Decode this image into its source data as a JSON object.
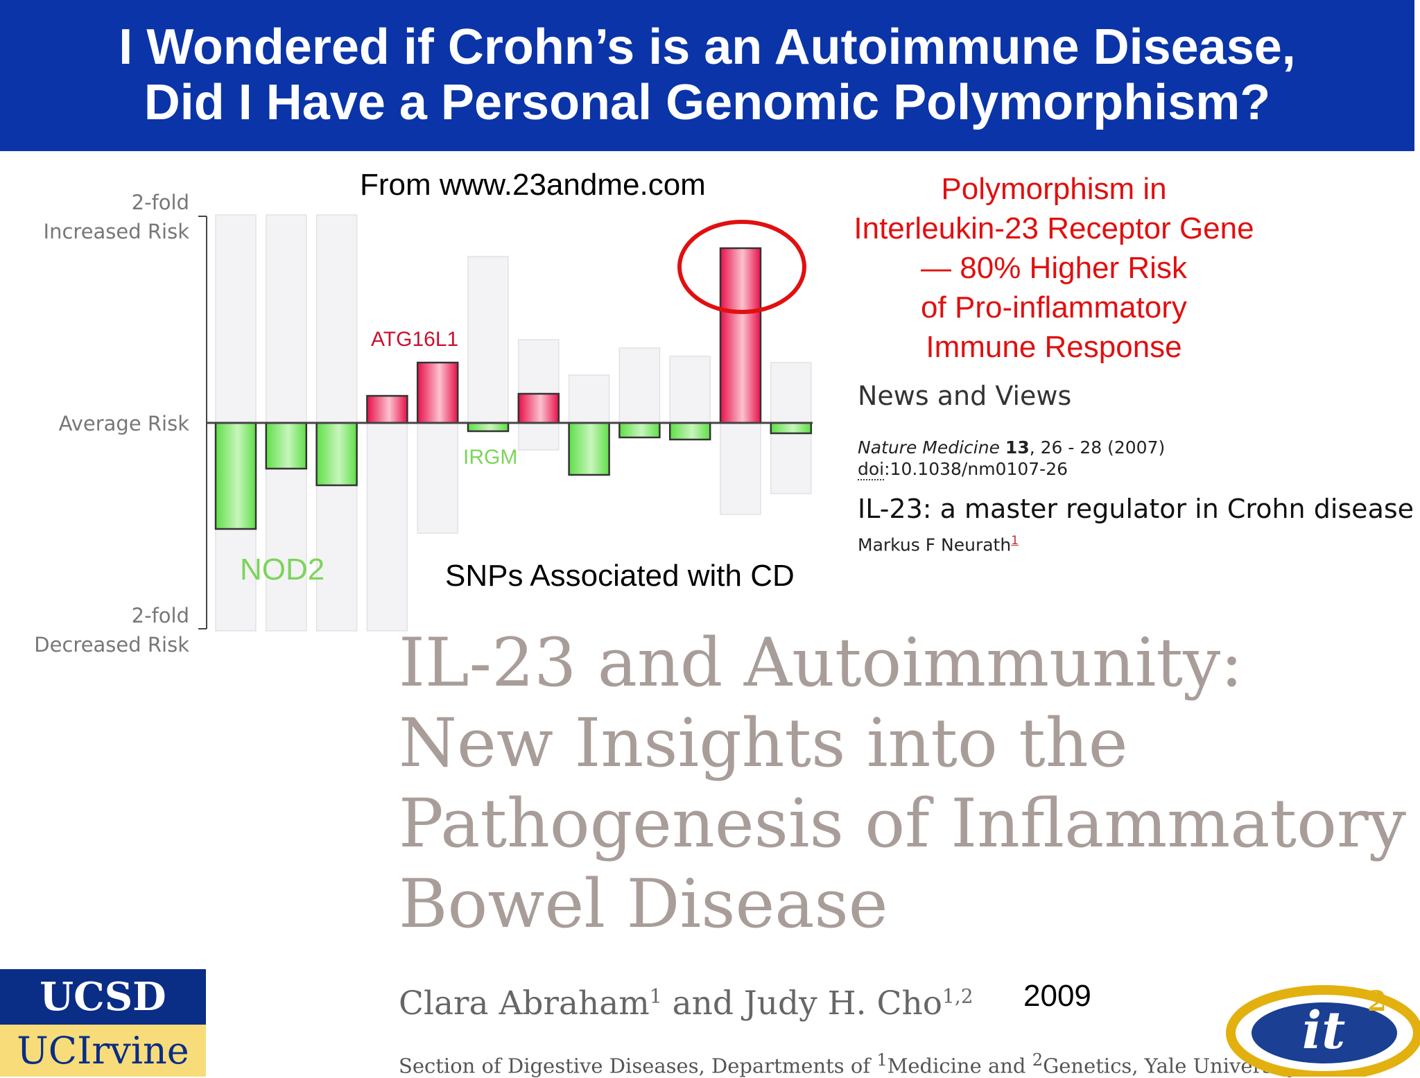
{
  "header": {
    "title_line1": "I Wondered if Crohn’s is an Autoimmune Disease,",
    "title_line2": "Did I Have a Personal Genomic Polymorphism?"
  },
  "source_label": "From www.23andme.com",
  "chart_data": {
    "type": "bar",
    "axis_labels": {
      "top_line1": "2-fold",
      "top_line2": "Increased Risk",
      "middle": "Average Risk",
      "bottom_line1": "2-fold",
      "bottom_line2": "Decreased Risk"
    },
    "ylim": [
      -1,
      1
    ],
    "values": [
      -0.51,
      -0.22,
      -0.3,
      0.13,
      0.29,
      -0.04,
      0.14,
      -0.25,
      -0.07,
      -0.08,
      0.84,
      -0.05
    ],
    "ranges": [
      [
        -1,
        1
      ],
      [
        -1,
        1
      ],
      [
        -1,
        1
      ],
      [
        -1,
        0
      ],
      [
        -0.53,
        0.29
      ],
      [
        -0.04,
        0.8
      ],
      [
        -0.13,
        0.4
      ],
      [
        -0.25,
        0.23
      ],
      [
        -0.07,
        0.36
      ],
      [
        -0.08,
        0.32
      ],
      [
        -0.44,
        0.84
      ],
      [
        -0.34,
        0.29
      ]
    ],
    "annotations": [
      {
        "text": "ATG16L1",
        "color": "#c8102e"
      },
      {
        "text": "IRGM",
        "color": "#7cd45a"
      },
      {
        "text": "NOD2",
        "color": "#7cd45a"
      }
    ],
    "caption": "SNPs Associated with CD",
    "colors": {
      "increased": "#e8104a",
      "decreased": "#66e052",
      "range": "#f3f3f5",
      "highlight": "#e01010"
    }
  },
  "polymorphism_note": {
    "line1": "Polymorphism in",
    "line2": "Interleukin-23 Receptor Gene",
    "line3": "— 80% Higher Risk",
    "line4": "of Pro-inflammatory",
    "line5": "Immune Response"
  },
  "article": {
    "section": "News and Views",
    "journal": "Nature Medicine",
    "volume": "13",
    "pages_year": ", 26 - 28 (2007)",
    "doi_label": "doi",
    "doi_value": ":10.1038/nm0107-26",
    "title": "IL-23: a master regulator in Crohn disease",
    "author": "Markus F Neurath",
    "author_sup": "1"
  },
  "review": {
    "title_line1": "IL-23 and Autoimmunity:",
    "title_line2": "New Insights into the",
    "title_line3": "Pathogenesis of Inflammatory",
    "title_line4": "Bowel Disease",
    "author1": "Clara Abraham",
    "author1_sup": "1",
    "and": " and ",
    "author2": "Judy H. Cho",
    "author2_sup": "1,2",
    "affil_a": "Section of Digestive Diseases, Departments of ",
    "affil_sup1": "1",
    "affil_b": "Medicine and ",
    "affil_sup2": "2",
    "affil_c": "Genetics, Yale University,",
    "year": "2009"
  },
  "logos": {
    "ucsd": "UCSD",
    "uci": "UCIrvine",
    "it_text": "it",
    "it_sup": "2"
  }
}
